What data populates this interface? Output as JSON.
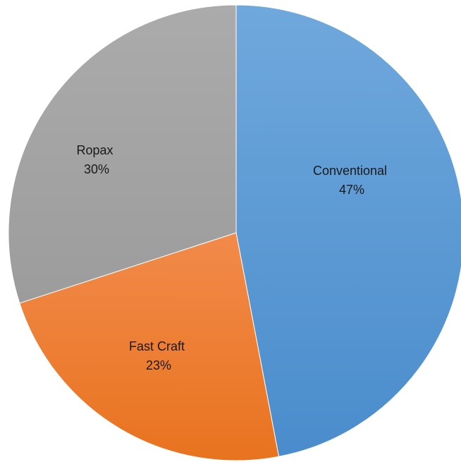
{
  "chart_data": {
    "type": "pie",
    "title": "",
    "start_angle_deg": 0,
    "direction": "clockwise",
    "legend": "none",
    "slices": [
      {
        "label": "Conventional",
        "value": 47,
        "value_label": "47%",
        "color": "#5b9bd5"
      },
      {
        "label": "Fast Craft",
        "value": 23,
        "value_label": "23%",
        "color": "#ed7d31"
      },
      {
        "label": "Ropax",
        "value": 30,
        "value_label": "30%",
        "color": "#a5a5a5"
      }
    ]
  }
}
